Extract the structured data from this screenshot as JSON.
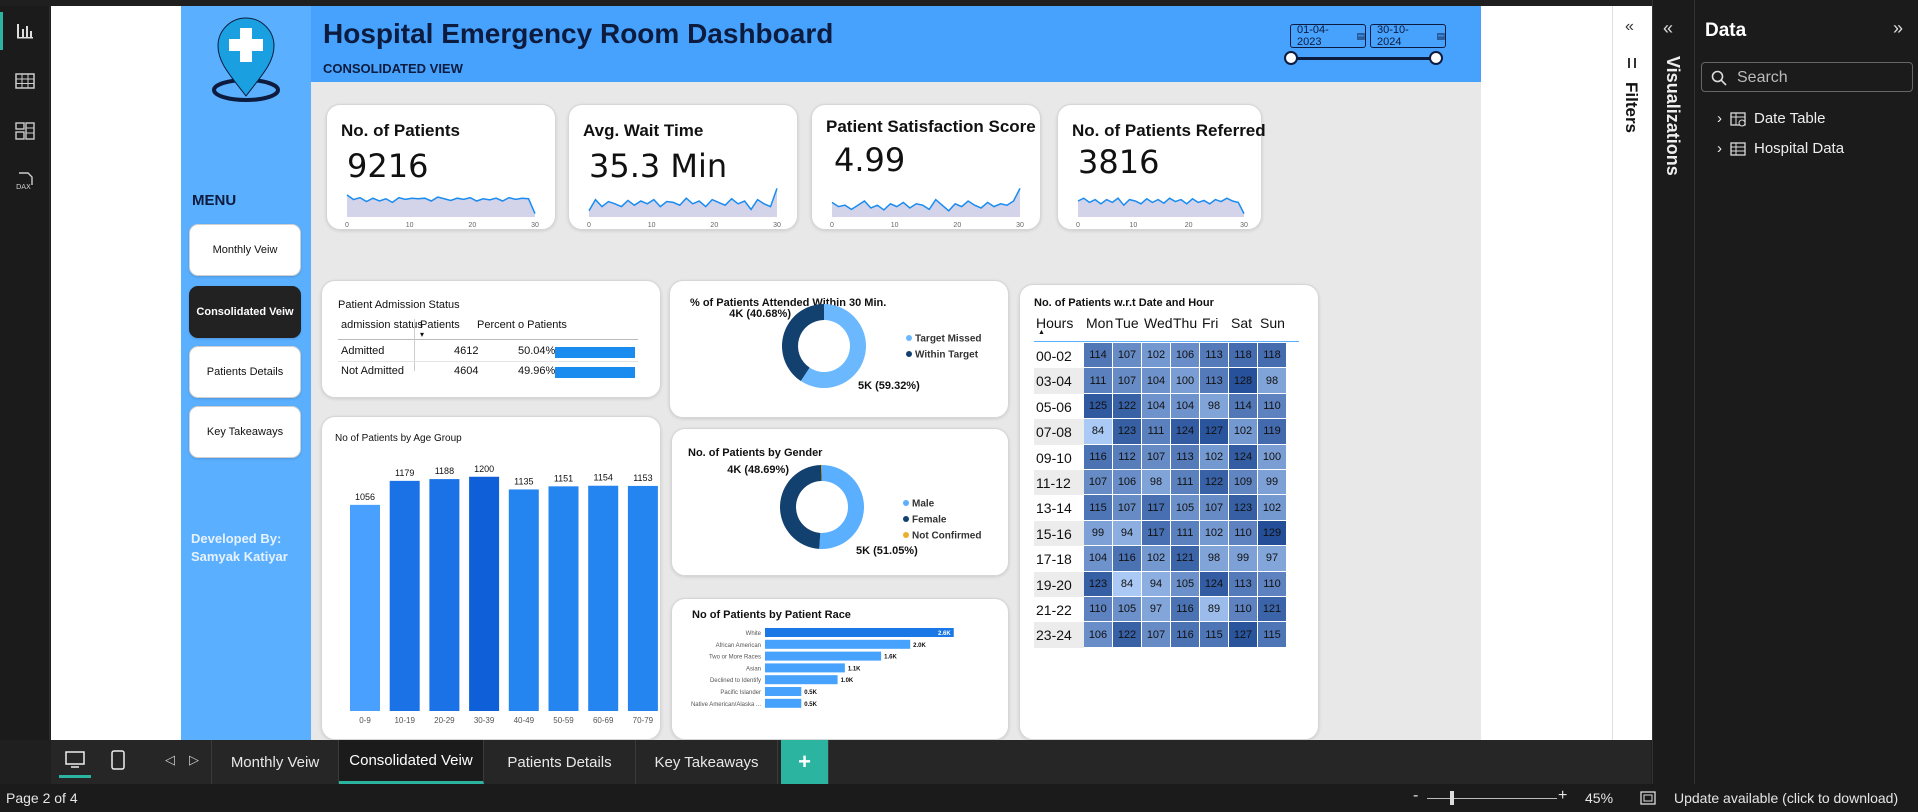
{
  "report": {
    "title": "Hospital Emergency Room Dashboard",
    "subtitle": "CONSOLIDATED VIEW",
    "date_start": "01-04-2023",
    "date_end": "30-10-2024",
    "menu_title": "MENU",
    "menu_items": [
      "Monthly Veiw",
      "Consolidated Veiw",
      "Patients Details",
      "Key Takeaways"
    ],
    "menu_active": "Consolidated Veiw",
    "developer_line1": "Developed By:",
    "developer_line2": "Samyak Katiyar"
  },
  "kpis": [
    {
      "title": "No. of Patients",
      "value": "9216",
      "x_ticks": [
        "0",
        "10",
        "20",
        "30"
      ],
      "spark": [
        0.72,
        0.55,
        0.62,
        0.48,
        0.6,
        0.5,
        0.58,
        0.45,
        0.62,
        0.56,
        0.6,
        0.58,
        0.6,
        0.5,
        0.64,
        0.58,
        0.52,
        0.6,
        0.56,
        0.62,
        0.5,
        0.58,
        0.54,
        0.6,
        0.5,
        0.62,
        0.56,
        0.6,
        0.58,
        0.05
      ]
    },
    {
      "title": "Avg. Wait Time",
      "value": "35.3 Min",
      "x_ticks": [
        "0",
        "10",
        "20",
        "30"
      ],
      "spark": [
        0.15,
        0.55,
        0.3,
        0.48,
        0.4,
        0.3,
        0.52,
        0.35,
        0.5,
        0.4,
        0.55,
        0.3,
        0.48,
        0.45,
        0.35,
        0.6,
        0.4,
        0.5,
        0.3,
        0.55,
        0.45,
        0.35,
        0.58,
        0.4,
        0.5,
        0.2,
        0.55,
        0.4,
        0.3,
        0.95
      ]
    },
    {
      "title": "Patient Satisfaction Score",
      "value": "4.99",
      "x_ticks": [
        "0",
        "10",
        "20",
        "30"
      ],
      "spark": [
        0.45,
        0.3,
        0.35,
        0.2,
        0.35,
        0.5,
        0.25,
        0.35,
        0.18,
        0.4,
        0.3,
        0.45,
        0.25,
        0.4,
        0.35,
        0.2,
        0.55,
        0.35,
        0.15,
        0.4,
        0.3,
        0.5,
        0.35,
        0.25,
        0.45,
        0.3,
        0.4,
        0.35,
        0.5,
        0.95
      ]
    },
    {
      "title": "No. of Patients Referred",
      "value": "3816",
      "x_ticks": [
        "0",
        "10",
        "20",
        "30"
      ],
      "spark": [
        0.5,
        0.6,
        0.45,
        0.55,
        0.4,
        0.55,
        0.45,
        0.6,
        0.35,
        0.55,
        0.5,
        0.4,
        0.58,
        0.45,
        0.55,
        0.42,
        0.6,
        0.48,
        0.55,
        0.4,
        0.58,
        0.45,
        0.52,
        0.4,
        0.55,
        0.48,
        0.6,
        0.5,
        0.45,
        0.05
      ]
    }
  ],
  "admission": {
    "title": "Patient Admission Status",
    "col1": "admission status",
    "col2": "Patients",
    "col3": "Percent o Patients",
    "rows": [
      {
        "status": "Admitted",
        "patients": "4612",
        "percent": "50.04%",
        "fraction": 0.5004
      },
      {
        "status": "Not Admitted",
        "patients": "4604",
        "percent": "49.96%",
        "fraction": 0.4996
      }
    ]
  },
  "donut_wait": {
    "title": "% of Patients Attended Within 30 Min.",
    "label_small": "4K (40.68%)",
    "label_large": "5K (59.32%)",
    "legend": [
      "Target Missed",
      "Within Target"
    ],
    "values": [
      59.32,
      40.68
    ],
    "colors": [
      "#6cb8ff",
      "#12406f"
    ]
  },
  "donut_gender": {
    "title": "No. of Patients by Gender",
    "label_small": "4K (48.69%)",
    "label_large": "5K (51.05%)",
    "legend": [
      "Male",
      "Female",
      "Not Confirmed"
    ],
    "values": [
      51.05,
      48.69,
      0.26
    ],
    "colors": [
      "#5aafff",
      "#12406f",
      "#e8b02c"
    ]
  },
  "chart_data": [
    {
      "type": "bar",
      "title": "No of Patients by Age Group",
      "categories": [
        "0-9",
        "10-19",
        "20-29",
        "30-39",
        "40-49",
        "50-59",
        "60-69",
        "70-79"
      ],
      "values": [
        1056,
        1179,
        1188,
        1200,
        1135,
        1151,
        1154,
        1153
      ],
      "colors": [
        "#4aa0ff",
        "#1a72e6",
        "#1a72e6",
        "#0f60d8",
        "#2585f0",
        "#2585f0",
        "#2585f0",
        "#2585f0"
      ]
    },
    {
      "type": "bar",
      "orientation": "horizontal",
      "title": "No of Patients by Patient Race",
      "categories": [
        "White",
        "African American",
        "Two or More Races",
        "Asian",
        "Declined to Identify",
        "Pacific Islander",
        "Native American/Alaska ..."
      ],
      "values": [
        2.6,
        2.0,
        1.6,
        1.1,
        1.0,
        0.5,
        0.5
      ],
      "labels": [
        "2.6K",
        "2.0K",
        "1.6K",
        "1.1K",
        "1.0K",
        "0.5K",
        "0.5K"
      ]
    },
    {
      "type": "heatmap",
      "title": "No. of Patients w.r.t Date and Hour",
      "row_header": "Hours",
      "columns": [
        "Mon",
        "Tue",
        "Wed",
        "Thu",
        "Fri",
        "Sat",
        "Sun"
      ],
      "rows": [
        "00-02",
        "03-04",
        "05-06",
        "07-08",
        "09-10",
        "11-12",
        "13-14",
        "15-16",
        "17-18",
        "19-20",
        "21-22",
        "23-24"
      ],
      "values": [
        [
          114,
          107,
          102,
          106,
          113,
          118,
          118
        ],
        [
          111,
          107,
          104,
          100,
          113,
          128,
          98
        ],
        [
          125,
          122,
          104,
          104,
          98,
          114,
          110
        ],
        [
          84,
          123,
          111,
          124,
          127,
          102,
          119
        ],
        [
          116,
          112,
          107,
          113,
          102,
          124,
          100
        ],
        [
          107,
          106,
          98,
          111,
          122,
          109,
          99
        ],
        [
          115,
          107,
          117,
          105,
          107,
          123,
          102
        ],
        [
          99,
          94,
          117,
          111,
          102,
          110,
          129
        ],
        [
          104,
          116,
          102,
          121,
          98,
          99,
          97
        ],
        [
          123,
          84,
          94,
          105,
          124,
          113,
          110
        ],
        [
          110,
          105,
          97,
          116,
          89,
          110,
          121
        ],
        [
          106,
          122,
          107,
          116,
          115,
          127,
          115
        ]
      ]
    }
  ],
  "panes": {
    "filters_label": "Filters",
    "visualizations_label": "Visualizations",
    "data_title": "Data",
    "search_placeholder": "Search",
    "tables": [
      "Date Table",
      "Hospital Data"
    ]
  },
  "tabs": {
    "items": [
      "Monthly Veiw",
      "Consolidated Veiw",
      "Patients Details",
      "Key Takeaways"
    ],
    "active": "Consolidated Veiw",
    "add_label": "+"
  },
  "status": {
    "page": "Page 2 of 4",
    "zoom": "45%",
    "update": "Update available (click to download)",
    "zoom_minus": "-",
    "zoom_plus": "+"
  },
  "colors": {
    "header_blue": "#46a2fd",
    "sidebar_blue": "#5aafff",
    "accent_teal": "#2bb5a0",
    "dark_navy": "#0d1b3e"
  }
}
